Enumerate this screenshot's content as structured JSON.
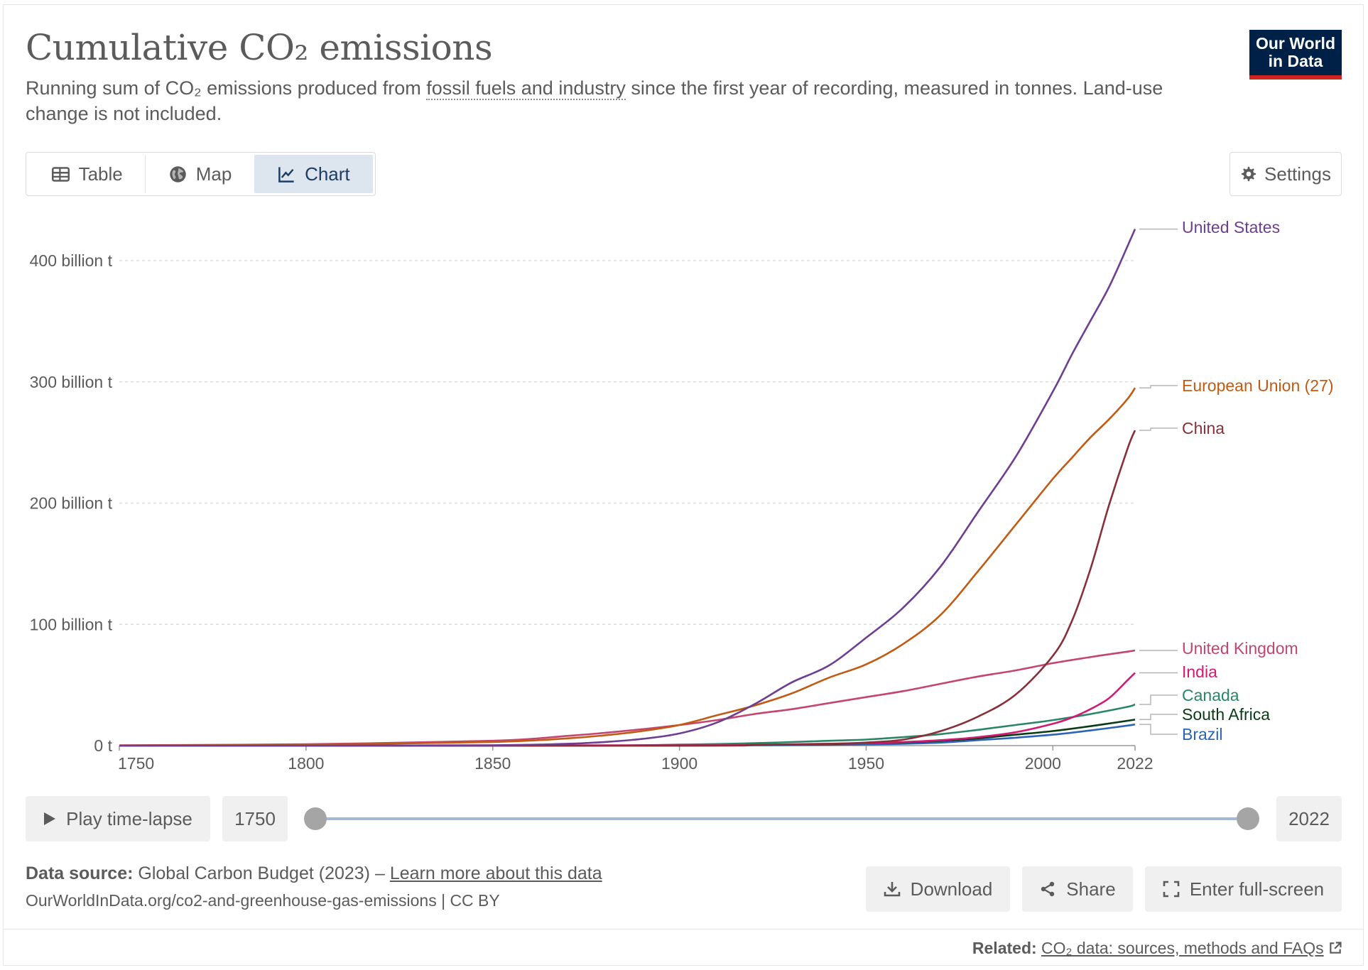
{
  "title": "Cumulative CO₂ emissions",
  "subtitle": {
    "before": "Running sum of CO₂ emissions produced from ",
    "link": "fossil fuels and industry",
    "after": " since the first year of recording, measured in tonnes. Land-use change is not included."
  },
  "logo": {
    "line1": "Our World",
    "line2": "in Data"
  },
  "tabs": [
    {
      "label": "Table",
      "icon": "table-icon"
    },
    {
      "label": "Map",
      "icon": "globe-icon"
    },
    {
      "label": "Chart",
      "icon": "line-chart-icon",
      "active": true
    }
  ],
  "settings_label": "Settings",
  "timeline": {
    "play_label": "Play time-lapse",
    "start_year": "1750",
    "end_year": "2022"
  },
  "source": {
    "label": "Data source:",
    "text": "Global Carbon Budget (2023) – ",
    "link": "Learn more about this data",
    "line2": "OurWorldInData.org/co2-and-greenhouse-gas-emissions | CC BY"
  },
  "actions": {
    "download": "Download",
    "share": "Share",
    "fullscreen": "Enter full-screen"
  },
  "related": {
    "label": "Related:",
    "link": "CO₂ data: sources, methods and FAQs"
  },
  "colors": {
    "grid": "#dddddd",
    "axis": "#999999",
    "text": "#5b5b5b"
  },
  "chart_data": {
    "type": "line",
    "title": "Cumulative CO₂ emissions",
    "xlim": [
      1750,
      2022
    ],
    "ylim": [
      0,
      430000000000
    ],
    "y_ticks": [
      {
        "value": 0,
        "label": "0 t"
      },
      {
        "value": 100000000000,
        "label": "100 billion t"
      },
      {
        "value": 200000000000,
        "label": "200 billion t"
      },
      {
        "value": 300000000000,
        "label": "300 billion t"
      },
      {
        "value": 400000000000,
        "label": "400 billion t"
      }
    ],
    "x_ticks": [
      1750,
      1800,
      1850,
      1900,
      1950,
      2000,
      2022
    ],
    "grid": "horizontal dashed",
    "legend": "end-of-line labels, right",
    "series": [
      {
        "name": "United States",
        "color": "#6d3e91",
        "points": [
          [
            1750,
            0
          ],
          [
            1800,
            0
          ],
          [
            1850,
            300000000.0
          ],
          [
            1870,
            1500000000.0
          ],
          [
            1880,
            3000000000.0
          ],
          [
            1890,
            5500000000.0
          ],
          [
            1900,
            10000000000.0
          ],
          [
            1910,
            19000000000.0
          ],
          [
            1920,
            34000000000.0
          ],
          [
            1930,
            52000000000.0
          ],
          [
            1940,
            66000000000.0
          ],
          [
            1950,
            89000000000.0
          ],
          [
            1960,
            114000000000.0
          ],
          [
            1970,
            148000000000.0
          ],
          [
            1980,
            193000000000.0
          ],
          [
            1990,
            238000000000.0
          ],
          [
            2000,
            292000000000.0
          ],
          [
            2005,
            322000000000.0
          ],
          [
            2010,
            350000000000.0
          ],
          [
            2015,
            378000000000.0
          ],
          [
            2020,
            412000000000.0
          ],
          [
            2022,
            426000000000.0
          ]
        ]
      },
      {
        "name": "European Union (27)",
        "color": "#c15a13",
        "points": [
          [
            1750,
            100000000.0
          ],
          [
            1800,
            800000000.0
          ],
          [
            1850,
            3000000000.0
          ],
          [
            1870,
            6000000000.0
          ],
          [
            1880,
            8500000000.0
          ],
          [
            1890,
            12000000000.0
          ],
          [
            1900,
            17000000000.0
          ],
          [
            1910,
            25000000000.0
          ],
          [
            1920,
            33000000000.0
          ],
          [
            1930,
            43000000000.0
          ],
          [
            1940,
            56000000000.0
          ],
          [
            1950,
            67000000000.0
          ],
          [
            1960,
            84000000000.0
          ],
          [
            1970,
            108000000000.0
          ],
          [
            1980,
            144000000000.0
          ],
          [
            1990,
            182000000000.0
          ],
          [
            2000,
            220000000000.0
          ],
          [
            2005,
            237000000000.0
          ],
          [
            2010,
            254000000000.0
          ],
          [
            2015,
            269000000000.0
          ],
          [
            2020,
            286000000000.0
          ],
          [
            2022,
            295000000000.0
          ]
        ]
      },
      {
        "name": "China",
        "color": "#883039",
        "points": [
          [
            1750,
            0
          ],
          [
            1900,
            0
          ],
          [
            1920,
            500000000.0
          ],
          [
            1940,
            1500000000.0
          ],
          [
            1950,
            2500000000.0
          ],
          [
            1960,
            5000000000.0
          ],
          [
            1970,
            12000000000.0
          ],
          [
            1980,
            24000000000.0
          ],
          [
            1990,
            42000000000.0
          ],
          [
            2000,
            74000000000.0
          ],
          [
            2005,
            102000000000.0
          ],
          [
            2010,
            145000000000.0
          ],
          [
            2015,
            198000000000.0
          ],
          [
            2020,
            245000000000.0
          ],
          [
            2022,
            260000000000.0
          ]
        ]
      },
      {
        "name": "United Kingdom",
        "color": "#c4466f",
        "points": [
          [
            1750,
            300000000.0
          ],
          [
            1800,
            1200000000.0
          ],
          [
            1850,
            4000000000.0
          ],
          [
            1870,
            8000000000.0
          ],
          [
            1880,
            10500000000.0
          ],
          [
            1890,
            13500000000.0
          ],
          [
            1900,
            17000000000.0
          ],
          [
            1910,
            21000000000.0
          ],
          [
            1920,
            26000000000.0
          ],
          [
            1930,
            30000000000.0
          ],
          [
            1940,
            35000000000.0
          ],
          [
            1950,
            40000000000.0
          ],
          [
            1960,
            45000000000.0
          ],
          [
            1970,
            51000000000.0
          ],
          [
            1980,
            57000000000.0
          ],
          [
            1990,
            62000000000.0
          ],
          [
            2000,
            68000000000.0
          ],
          [
            2010,
            73000000000.0
          ],
          [
            2020,
            77500000000.0
          ],
          [
            2022,
            78500000000.0
          ]
        ]
      },
      {
        "name": "India",
        "color": "#d01a74",
        "points": [
          [
            1750,
            0
          ],
          [
            1900,
            300000000.0
          ],
          [
            1920,
            800000000.0
          ],
          [
            1940,
            1500000000.0
          ],
          [
            1950,
            2000000000.0
          ],
          [
            1960,
            3000000000.0
          ],
          [
            1970,
            4500000000.0
          ],
          [
            1980,
            7000000000.0
          ],
          [
            1990,
            11000000000.0
          ],
          [
            2000,
            18000000000.0
          ],
          [
            2005,
            23000000000.0
          ],
          [
            2010,
            30000000000.0
          ],
          [
            2015,
            39000000000.0
          ],
          [
            2020,
            54000000000.0
          ],
          [
            2022,
            60000000000.0
          ]
        ]
      },
      {
        "name": "Canada",
        "color": "#2a8666",
        "points": [
          [
            1750,
            0
          ],
          [
            1870,
            0
          ],
          [
            1900,
            800000000.0
          ],
          [
            1920,
            2000000000.0
          ],
          [
            1940,
            4000000000.0
          ],
          [
            1950,
            5000000000.0
          ],
          [
            1960,
            7000000000.0
          ],
          [
            1970,
            9500000000.0
          ],
          [
            1980,
            13000000000.0
          ],
          [
            1990,
            17000000000.0
          ],
          [
            2000,
            21000000000.0
          ],
          [
            2010,
            26000000000.0
          ],
          [
            2020,
            32000000000.0
          ],
          [
            2022,
            34000000000.0
          ]
        ]
      },
      {
        "name": "South Africa",
        "color": "#0a3b14",
        "points": [
          [
            1750,
            0
          ],
          [
            1890,
            0
          ],
          [
            1920,
            500000000.0
          ],
          [
            1940,
            1200000000.0
          ],
          [
            1950,
            2000000000.0
          ],
          [
            1960,
            2700000000.0
          ],
          [
            1970,
            4000000000.0
          ],
          [
            1980,
            6000000000.0
          ],
          [
            1990,
            9000000000.0
          ],
          [
            2000,
            12000000000.0
          ],
          [
            2010,
            16000000000.0
          ],
          [
            2020,
            20500000000.0
          ],
          [
            2022,
            21500000000.0
          ]
        ]
      },
      {
        "name": "Brazil",
        "color": "#2b64b7",
        "points": [
          [
            1750,
            0
          ],
          [
            1900,
            0
          ],
          [
            1920,
            300000000.0
          ],
          [
            1940,
            600000000.0
          ],
          [
            1950,
            1000000000.0
          ],
          [
            1960,
            1500000000.0
          ],
          [
            1970,
            2500000000.0
          ],
          [
            1980,
            4500000000.0
          ],
          [
            1990,
            6500000000.0
          ],
          [
            2000,
            9000000000.0
          ],
          [
            2010,
            12500000000.0
          ],
          [
            2020,
            16500000000.0
          ],
          [
            2022,
            17500000000.0
          ]
        ]
      }
    ]
  }
}
